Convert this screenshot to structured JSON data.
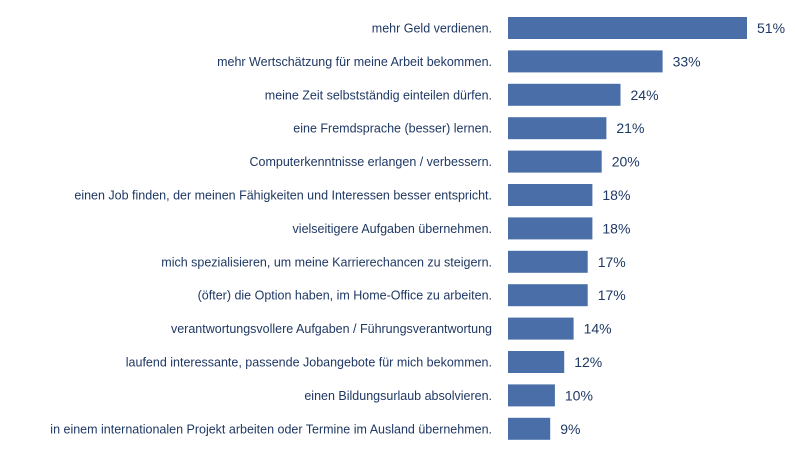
{
  "chart_data": {
    "type": "bar",
    "orientation": "horizontal",
    "title": "",
    "xlabel": "",
    "ylabel": "",
    "grid": false,
    "legend": "none",
    "bar_color": "#4a6fa8",
    "text_color": "#1f3864",
    "xlim": [
      0,
      51
    ],
    "categories": [
      "mehr Geld verdienen.",
      "mehr Wertschätzung für meine Arbeit bekommen.",
      "meine Zeit selbstständig einteilen dürfen.",
      "eine Fremdsprache (besser) lernen.",
      "Computerkenntnisse erlangen / verbessern.",
      "einen Job finden, der meinen Fähigkeiten und Interessen besser entspricht.",
      "vielseitigere Aufgaben übernehmen.",
      "mich spezialisieren, um meine Karrierechancen zu steigern.",
      "(öfter) die Option haben, im Home-Office zu arbeiten.",
      "verantwortungsvollere Aufgaben / Führungsverantwortung",
      "laufend interessante, passende Jobangebote für mich bekommen.",
      "einen Bildungsurlaub absolvieren.",
      "in einem internationalen Projekt arbeiten oder Termine im Ausland übernehmen."
    ],
    "values": [
      51,
      33,
      24,
      21,
      20,
      18,
      18,
      17,
      17,
      14,
      12,
      10,
      9
    ],
    "value_labels": [
      "51%",
      "33%",
      "24%",
      "21%",
      "20%",
      "18%",
      "18%",
      "17%",
      "17%",
      "14%",
      "12%",
      "10%",
      "9%"
    ]
  }
}
